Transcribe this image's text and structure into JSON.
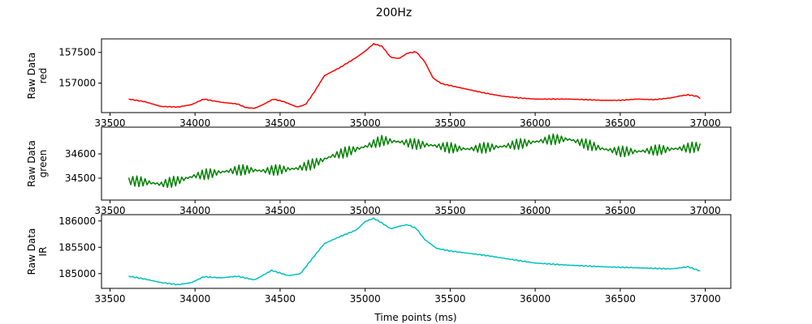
{
  "title": "200Hz",
  "chart_data": {
    "type": "line",
    "title": "200Hz",
    "xlabel": "Time points (ms)",
    "panels": [
      {
        "id": "red",
        "ylabel_lines": [
          "Raw Data",
          "red"
        ],
        "color": "#ff0000",
        "xlim": [
          33450,
          37150
        ],
        "ylim": [
          156520,
          157720
        ],
        "xticks": [
          33500,
          34000,
          34500,
          35000,
          35500,
          36000,
          36500,
          37000
        ],
        "yticks": [
          157000,
          157500
        ],
        "series": [
          {
            "name": "",
            "jitter": 6,
            "x": [
              33610,
              33700,
              33800,
              33900,
              33980,
              34050,
              34150,
              34250,
              34300,
              34350,
              34400,
              34460,
              34520,
              34600,
              34650,
              34700,
              34760,
              34850,
              34950,
              35000,
              35050,
              35100,
              35150,
              35200,
              35250,
              35300,
              35350,
              35400,
              35450,
              35500,
              35600,
              35700,
              35800,
              35900,
              36000,
              36200,
              36400,
              36500,
              36600,
              36700,
              36800,
              36850,
              36900,
              36960,
              36980
            ],
            "y": [
              156740,
              156700,
              156620,
              156610,
              156650,
              156740,
              156690,
              156660,
              156600,
              156590,
              156650,
              156740,
              156700,
              156610,
              156650,
              156850,
              157120,
              157250,
              157420,
              157520,
              157640,
              157600,
              157420,
              157400,
              157490,
              157510,
              157350,
              157080,
              156990,
              156960,
              156900,
              156840,
              156790,
              156760,
              156740,
              156740,
              156720,
              156720,
              156740,
              156730,
              156760,
              156790,
              156810,
              156780,
              156710
            ]
          }
        ]
      },
      {
        "id": "green",
        "ylabel_lines": [
          "Raw Data",
          "green"
        ],
        "color": "#008000",
        "xlim": [
          33450,
          37150
        ],
        "ylim": [
          34410,
          34710
        ],
        "xticks": [
          33500,
          34000,
          34500,
          35000,
          35500,
          36000,
          36500,
          37000
        ],
        "yticks": [
          34500,
          34600
        ],
        "series": [
          {
            "name": "",
            "jitter": 22,
            "x": [
              33610,
              33700,
              33800,
              33900,
              34000,
              34100,
              34200,
              34300,
              34400,
              34500,
              34600,
              34700,
              34800,
              34900,
              35000,
              35100,
              35200,
              35300,
              35400,
              35500,
              35600,
              35700,
              35800,
              35900,
              36000,
              36100,
              36200,
              36300,
              36400,
              36500,
              36600,
              36700,
              36800,
              36900,
              36970
            ],
            "y": [
              34490,
              34485,
              34475,
              34490,
              34510,
              34520,
              34530,
              34535,
              34530,
              34535,
              34540,
              34560,
              34590,
              34610,
              34630,
              34655,
              34650,
              34640,
              34635,
              34625,
              34620,
              34625,
              34630,
              34640,
              34650,
              34660,
              34660,
              34640,
              34620,
              34610,
              34610,
              34615,
              34620,
              34625,
              34630
            ]
          }
        ]
      },
      {
        "id": "ir",
        "ylabel_lines": [
          "Raw Data",
          "IR"
        ],
        "color": "#00bfbf",
        "xlim": [
          33450,
          37150
        ],
        "ylim": [
          184720,
          186120
        ],
        "xticks": [
          33500,
          34000,
          34500,
          35000,
          35500,
          36000,
          36500,
          37000
        ],
        "yticks": [
          185000,
          185500,
          186000
        ],
        "series": [
          {
            "name": "",
            "jitter": 10,
            "x": [
              33610,
              33700,
              33800,
              33900,
              33980,
              34050,
              34150,
              34250,
              34350,
              34450,
              34550,
              34620,
              34700,
              34760,
              34850,
              34950,
              35000,
              35050,
              35100,
              35150,
              35200,
              35250,
              35300,
              35350,
              35420,
              35500,
              35600,
              35700,
              35800,
              35900,
              36000,
              36200,
              36400,
              36600,
              36800,
              36900,
              36970
            ],
            "y": [
              184950,
              184900,
              184830,
              184790,
              184830,
              184940,
              184920,
              184950,
              184880,
              185060,
              184960,
              185000,
              185330,
              185570,
              185700,
              185830,
              185990,
              186050,
              185960,
              185850,
              185900,
              185930,
              185860,
              185650,
              185480,
              185430,
              185390,
              185350,
              185300,
              185250,
              185200,
              185160,
              185130,
              185110,
              185090,
              185130,
              185050
            ]
          }
        ]
      }
    ]
  }
}
